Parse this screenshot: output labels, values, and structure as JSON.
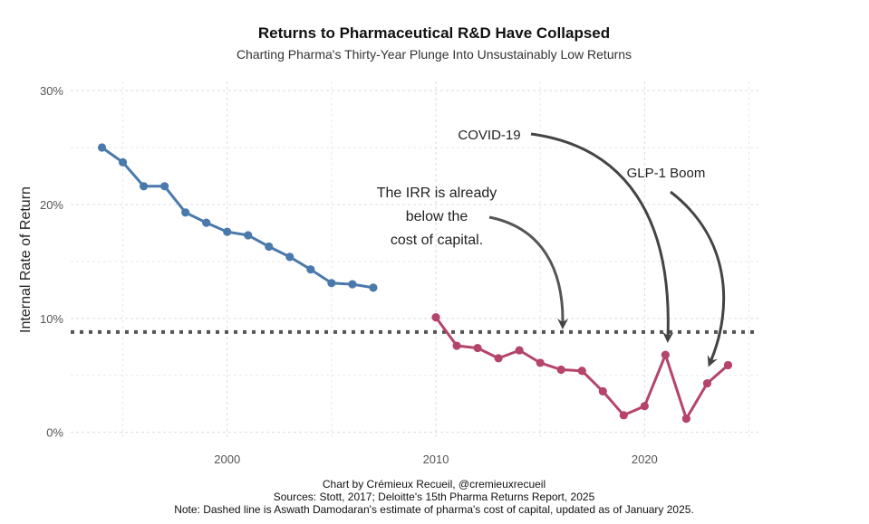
{
  "colors": {
    "pre_2010": "#4a7aab",
    "post_2010": "#b5446a",
    "cost_line": "#555555",
    "arrow": "#444444"
  },
  "chart_data": {
    "type": "line",
    "title": "Returns to Pharmaceutical R&D Have Collapsed",
    "subtitle": "Charting Pharma's Thirty-Year Plunge Into Unsustainably Low Returns",
    "ylabel": "Internal Rate of Return",
    "xlabel": "",
    "xlim": [
      1992.5,
      2025.5
    ],
    "ylim": [
      -0.5,
      30.8
    ],
    "xticks": [
      2000,
      2010,
      2020
    ],
    "yticks": [
      {
        "value": 0,
        "label": "0%"
      },
      {
        "value": 10,
        "label": "10%"
      },
      {
        "value": 20,
        "label": "20%"
      },
      {
        "value": 30,
        "label": "30%"
      }
    ],
    "grid": true,
    "series": [
      {
        "color_key": "pre_2010",
        "points": [
          {
            "x": 1994,
            "y": 25.0
          },
          {
            "x": 1995,
            "y": 23.7
          },
          {
            "x": 1996,
            "y": 21.6
          },
          {
            "x": 1997,
            "y": 21.6
          },
          {
            "x": 1998,
            "y": 19.3
          },
          {
            "x": 1999,
            "y": 18.4
          },
          {
            "x": 2000,
            "y": 17.6
          },
          {
            "x": 2001,
            "y": 17.3
          },
          {
            "x": 2002,
            "y": 16.3
          },
          {
            "x": 2003,
            "y": 15.4
          },
          {
            "x": 2004,
            "y": 14.3
          },
          {
            "x": 2005,
            "y": 13.1
          },
          {
            "x": 2006,
            "y": 13.0
          },
          {
            "x": 2007,
            "y": 12.7
          }
        ]
      },
      {
        "color_key": "post_2010",
        "points": [
          {
            "x": 2010,
            "y": 10.1
          },
          {
            "x": 2011,
            "y": 7.6
          },
          {
            "x": 2012,
            "y": 7.4
          },
          {
            "x": 2013,
            "y": 6.5
          },
          {
            "x": 2014,
            "y": 7.2
          },
          {
            "x": 2015,
            "y": 6.1
          },
          {
            "x": 2016,
            "y": 5.5
          },
          {
            "x": 2017,
            "y": 5.4
          },
          {
            "x": 2018,
            "y": 3.6
          },
          {
            "x": 2019,
            "y": 1.5
          },
          {
            "x": 2020,
            "y": 2.3
          },
          {
            "x": 2021,
            "y": 6.8
          },
          {
            "x": 2022,
            "y": 1.2
          },
          {
            "x": 2023,
            "y": 4.3
          },
          {
            "x": 2024,
            "y": 5.9
          }
        ]
      }
    ],
    "reference_line": {
      "y": 8.8,
      "style": "dotted"
    },
    "annotations": [
      {
        "lines": [
          "The IRR is already",
          "below the",
          "cost of capital."
        ]
      },
      {
        "lines": [
          "COVID-19"
        ]
      },
      {
        "lines": [
          "GLP-1 Boom"
        ]
      }
    ],
    "caption": [
      "Chart by Crémieux Recueil, @cremieuxrecueil",
      "Sources: Stott, 2017; Deloitte's 15th Pharma Returns Report, 2025",
      "Note: Dashed line is Aswath Damodaran's estimate of pharma's cost of capital, updated as of January 2025."
    ]
  }
}
